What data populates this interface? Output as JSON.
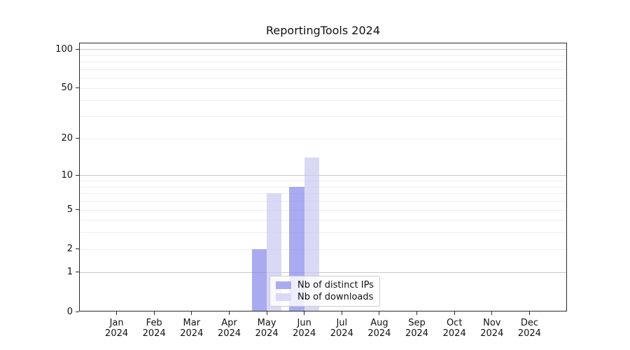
{
  "chart_data": {
    "type": "bar",
    "title": "ReportingTools 2024",
    "categories": [
      {
        "month": "Jan",
        "year": "2024"
      },
      {
        "month": "Feb",
        "year": "2024"
      },
      {
        "month": "Mar",
        "year": "2024"
      },
      {
        "month": "Apr",
        "year": "2024"
      },
      {
        "month": "May",
        "year": "2024"
      },
      {
        "month": "Jun",
        "year": "2024"
      },
      {
        "month": "Jul",
        "year": "2024"
      },
      {
        "month": "Aug",
        "year": "2024"
      },
      {
        "month": "Sep",
        "year": "2024"
      },
      {
        "month": "Oct",
        "year": "2024"
      },
      {
        "month": "Nov",
        "year": "2024"
      },
      {
        "month": "Dec",
        "year": "2024"
      }
    ],
    "series": [
      {
        "name": "Nb of distinct IPs",
        "color": "#aaaaf0",
        "values": [
          0,
          0,
          0,
          0,
          2,
          8,
          0,
          0,
          0,
          0,
          0,
          0
        ]
      },
      {
        "name": "Nb of downloads",
        "color": "#d9d9f6",
        "values": [
          0,
          0,
          0,
          0,
          7,
          14,
          0,
          0,
          0,
          0,
          0,
          0
        ]
      }
    ],
    "xlabel": "",
    "ylabel": "",
    "yscale": "log1p",
    "ylim": [
      0,
      112
    ],
    "y_ticks": [
      0,
      1,
      2,
      5,
      10,
      20,
      50,
      100
    ],
    "y_major_gridlines": [
      1,
      10,
      100
    ],
    "y_minor_gridlines": [
      2,
      3,
      4,
      5,
      6,
      7,
      8,
      9,
      20,
      30,
      40,
      50,
      60,
      70,
      80,
      90
    ],
    "grid": "horizontal",
    "legend_position": "lower-center-inside"
  }
}
